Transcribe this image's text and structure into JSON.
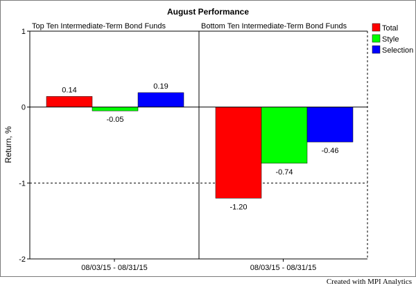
{
  "chart_data": {
    "type": "bar",
    "title": "August Performance",
    "ylabel": "Return, %",
    "xlabel": "",
    "ylim": [
      -2,
      1
    ],
    "yticks": [
      1,
      0,
      -1,
      -2
    ],
    "grid": true,
    "legend_position": "right",
    "panels": [
      {
        "title": "Top Ten Intermediate-Term Bond Funds",
        "category": "08/03/15 - 08/31/15",
        "labels": [
          "0.14",
          "-0.05",
          "0.19"
        ]
      },
      {
        "title": "Bottom Ten Intermediate-Term Bond Funds",
        "category": "08/03/15 - 08/31/15",
        "labels": [
          "-1.20",
          "-0.74",
          "-0.46"
        ]
      }
    ],
    "series": [
      {
        "name": "Total",
        "color": "#ff0000",
        "values": [
          0.14,
          -1.2
        ]
      },
      {
        "name": "Style",
        "color": "#00ff00",
        "values": [
          -0.05,
          -0.74
        ]
      },
      {
        "name": "Selection",
        "color": "#0000ff",
        "values": [
          0.19,
          -0.46
        ]
      }
    ]
  },
  "footer": {
    "credit": "Created with MPI Analytics"
  }
}
